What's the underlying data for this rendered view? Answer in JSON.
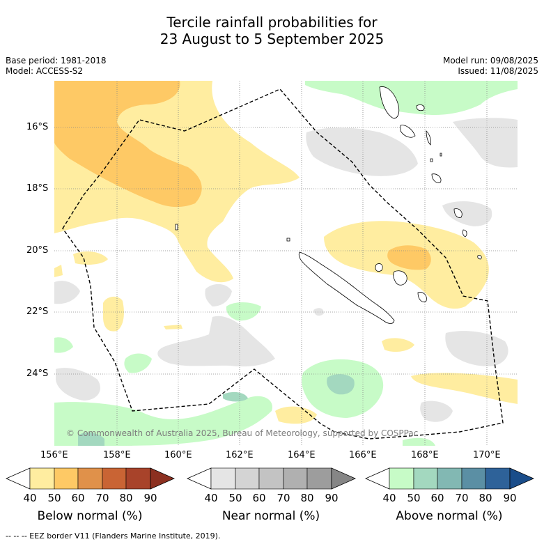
{
  "title_line1": "Tercile rainfall probabilities for",
  "title_line2": "23 August to 5 September 2025",
  "meta_left": [
    "Base period: 1981-2018",
    "Model: ACCESS-S2"
  ],
  "meta_right": [
    "Model run: 09/08/2025",
    "Issued: 11/08/2025"
  ],
  "lat_ticks": [
    "16°S",
    "18°S",
    "20°S",
    "22°S",
    "24°S"
  ],
  "lon_ticks": [
    "156°E",
    "158°E",
    "160°E",
    "162°E",
    "164°E",
    "166°E",
    "168°E",
    "170°E"
  ],
  "copyright": "© Commonwealth of Australia 2025, Bureau of Meteorology, supported by COSPPac",
  "colorbars": [
    {
      "title": "Below normal (%)",
      "ticks": [
        "40",
        "50",
        "60",
        "70",
        "80",
        "90"
      ],
      "colors": [
        "#ffffff",
        "#ffeda0",
        "#fec965",
        "#e0914a",
        "#c96434",
        "#a8432a",
        "#8c3020"
      ]
    },
    {
      "title": "Near normal (%)",
      "ticks": [
        "40",
        "50",
        "60",
        "70",
        "80",
        "90"
      ],
      "colors": [
        "#ffffff",
        "#e5e5e5",
        "#d4d4d4",
        "#c3c3c3",
        "#b0b0b0",
        "#9d9d9d",
        "#868686"
      ]
    },
    {
      "title": "Above normal (%)",
      "ticks": [
        "40",
        "50",
        "60",
        "70",
        "80",
        "90"
      ],
      "colors": [
        "#ffffff",
        "#c7fbc7",
        "#a3d8bf",
        "#82b8b3",
        "#5b8fa4",
        "#2e6299",
        "#1a4d8a"
      ]
    }
  ],
  "footer": "-- -- -- EEZ border V11 (Flanders Marine Institute, 2019)."
}
